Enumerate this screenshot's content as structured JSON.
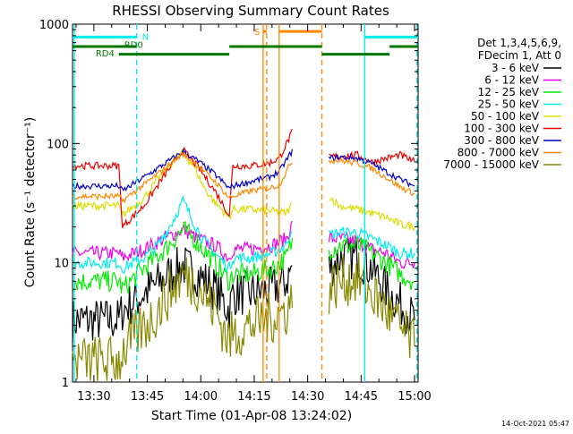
{
  "chart_data": {
    "type": "line",
    "title": "RHESSI Observing Summary Count Rates",
    "xlabel": "Start Time (01-Apr-08 13:24:02)",
    "ylabel": "Count Rate (s⁻¹ detector⁻¹)",
    "y_scale": "log",
    "ylim": [
      1,
      1000
    ],
    "xlim_minutes": [
      0,
      97
    ],
    "x_ticks": [
      {
        "label": "13:30",
        "minute": 6
      },
      {
        "label": "13:45",
        "minute": 21
      },
      {
        "label": "14:00",
        "minute": 36
      },
      {
        "label": "14:15",
        "minute": 51
      },
      {
        "label": "14:30",
        "minute": 66
      },
      {
        "label": "14:45",
        "minute": 81
      },
      {
        "label": "15:00",
        "minute": 96
      }
    ],
    "y_ticks": [
      {
        "label": "1",
        "value": 1
      },
      {
        "label": "10",
        "value": 10
      },
      {
        "label": "100",
        "value": 100
      },
      {
        "label": "1000",
        "value": 1000
      }
    ],
    "timestamp": "14-Oct-2021 05:47",
    "legend": {
      "position": "right",
      "header": [
        "Det 1,3,4,5,6,9,",
        "FDecim 1, Att 0"
      ]
    },
    "series": [
      {
        "name": "3 - 6 keV",
        "color": "#000000",
        "noise": 0.38,
        "x": [
          0,
          13,
          14,
          20,
          26,
          31,
          35,
          40,
          44,
          45,
          50,
          56,
          60,
          62,
          63,
          72,
          75,
          80,
          84,
          88,
          92,
          96
        ],
        "y": [
          3.3,
          3.3,
          4,
          5.5,
          7.5,
          9.5,
          8,
          6,
          4,
          5.5,
          5.5,
          6,
          7,
          10,
          null,
          9,
          11,
          11,
          9,
          6,
          4.5,
          3.3
        ]
      },
      {
        "name": "6 - 12 keV",
        "color": "#ee00ee",
        "noise": 0.12,
        "x": [
          0,
          13,
          14,
          20,
          26,
          31,
          35,
          40,
          44,
          45,
          50,
          56,
          60,
          62,
          63,
          72,
          75,
          80,
          84,
          88,
          92,
          96
        ],
        "y": [
          12,
          12,
          11,
          13,
          16,
          19,
          16,
          14,
          11,
          13,
          13,
          14,
          16,
          22,
          null,
          16,
          16,
          15,
          13,
          12,
          10,
          10
        ]
      },
      {
        "name": "12 - 25 keV",
        "color": "#00ee00",
        "noise": 0.18,
        "x": [
          0,
          13,
          14,
          20,
          26,
          31,
          35,
          40,
          44,
          45,
          50,
          56,
          60,
          62,
          63,
          72,
          75,
          80,
          84,
          88,
          92,
          96
        ],
        "y": [
          7,
          7,
          6,
          9,
          13,
          19,
          15,
          10,
          7,
          8,
          8,
          9,
          11,
          16,
          null,
          13,
          14,
          14,
          12,
          10,
          8,
          7
        ]
      },
      {
        "name": "25 - 50 keV",
        "color": "#00eeee",
        "noise": 0.1,
        "x": [
          0,
          13,
          14,
          20,
          24,
          28,
          31,
          34,
          37,
          40,
          44,
          45,
          50,
          56,
          60,
          62,
          63,
          72,
          75,
          80,
          84,
          88,
          92,
          96
        ],
        "y": [
          10,
          10,
          9,
          11,
          14,
          22,
          33,
          22,
          15,
          12,
          9,
          11,
          11,
          12,
          14,
          22,
          null,
          17,
          18,
          18,
          16,
          14,
          12,
          12
        ]
      },
      {
        "name": "50 - 100 keV",
        "color": "#dddd00",
        "noise": 0.07,
        "x": [
          0,
          13,
          14,
          20,
          24,
          28,
          31,
          34,
          37,
          40,
          44,
          45,
          50,
          56,
          60,
          62,
          63,
          72,
          75,
          80,
          84,
          88,
          92,
          96
        ],
        "y": [
          30,
          30,
          25,
          35,
          50,
          70,
          83,
          65,
          42,
          32,
          24,
          28,
          28,
          27,
          26,
          32,
          null,
          36,
          30,
          28,
          26,
          24,
          21,
          20
        ]
      },
      {
        "name": "100 - 300 keV",
        "color": "#ee0000",
        "noise": 0.06,
        "x": [
          0,
          13,
          14,
          20,
          26,
          31,
          35,
          40,
          44,
          45,
          50,
          55,
          58,
          62,
          63,
          72,
          75,
          80,
          84,
          88,
          92,
          96
        ],
        "y": [
          65,
          65,
          20,
          30,
          55,
          88,
          65,
          40,
          25,
          65,
          65,
          68,
          75,
          130,
          null,
          78,
          78,
          80,
          70,
          75,
          80,
          70
        ]
      },
      {
        "name": "300 - 800 keV",
        "color": "#0000cc",
        "noise": 0.05,
        "x": [
          0,
          13,
          14,
          20,
          26,
          31,
          35,
          40,
          44,
          45,
          50,
          55,
          58,
          62,
          63,
          72,
          75,
          80,
          84,
          88,
          92,
          96
        ],
        "y": [
          44,
          44,
          40,
          52,
          68,
          85,
          72,
          55,
          42,
          44,
          48,
          52,
          58,
          90,
          null,
          75,
          77,
          75,
          68,
          58,
          50,
          44
        ]
      },
      {
        "name": "800 - 7000 keV",
        "color": "#ff8800",
        "noise": 0.05,
        "x": [
          0,
          13,
          14,
          20,
          26,
          31,
          35,
          40,
          44,
          45,
          50,
          55,
          58,
          62,
          63,
          72,
          75,
          80,
          84,
          88,
          92,
          96
        ],
        "y": [
          36,
          36,
          33,
          45,
          62,
          82,
          66,
          48,
          35,
          36,
          40,
          42,
          45,
          75,
          null,
          72,
          72,
          68,
          62,
          52,
          43,
          38
        ]
      },
      {
        "name": "7000 - 15000 keV",
        "color": "#888800",
        "noise": 0.45,
        "x": [
          0,
          13,
          14,
          18,
          22,
          26,
          31,
          35,
          40,
          44,
          45,
          50,
          56,
          60,
          62,
          63,
          72,
          75,
          80,
          84,
          88,
          92,
          96
        ],
        "y": [
          1.5,
          1.5,
          1.8,
          2.5,
          3.3,
          5,
          8,
          6.5,
          4,
          2.2,
          2.5,
          3,
          3.5,
          4,
          5,
          null,
          6,
          7,
          7.5,
          5.5,
          4,
          2.8,
          2
        ]
      }
    ],
    "vertical_lines": [
      {
        "minute": 0.5,
        "color": "#00eeee",
        "dashed": false
      },
      {
        "minute": 18,
        "color": "#00eeee",
        "dashed": true
      },
      {
        "minute": 82,
        "color": "#00eeee",
        "dashed": false
      },
      {
        "minute": 96.7,
        "color": "#00eeee",
        "dashed": true
      },
      {
        "minute": 53.5,
        "color": "#ff8800",
        "dashed": false
      },
      {
        "minute": 54.5,
        "color": "#ff8800",
        "dashed": true
      },
      {
        "minute": 58,
        "color": "#ff8800",
        "dashed": false
      },
      {
        "minute": 70,
        "color": "#ff8800",
        "dashed": true
      }
    ],
    "flag_bars": [
      {
        "color": "#00eeee",
        "value": 780,
        "from": 0,
        "to": 18
      },
      {
        "color": "#00eeee",
        "value": 780,
        "from": 82,
        "to": 97
      },
      {
        "color": "#ff8800",
        "value": 870,
        "from": 53.5,
        "to": 54.5
      },
      {
        "color": "#ff8800",
        "value": 870,
        "from": 58,
        "to": 70
      },
      {
        "color": "#007700",
        "value": 650,
        "from": 0,
        "to": 18
      },
      {
        "color": "#007700",
        "value": 650,
        "from": 44,
        "to": 70
      },
      {
        "color": "#007700",
        "value": 650,
        "from": 89,
        "to": 97
      },
      {
        "color": "#007700",
        "value": 560,
        "from": 13,
        "to": 44
      },
      {
        "color": "#007700",
        "value": 560,
        "from": 70,
        "to": 89
      }
    ],
    "flag_labels": [
      {
        "text": "N",
        "color": "#00eeee",
        "minute": 19.5,
        "value": 790
      },
      {
        "text": "S",
        "color": "#ff8800",
        "minute": 51,
        "value": 870
      },
      {
        "text": "RD0",
        "color": "#007700",
        "minute": 14.5,
        "value": 680
      },
      {
        "text": "RD4",
        "color": "#007700",
        "minute": 6.5,
        "value": 575
      }
    ]
  }
}
